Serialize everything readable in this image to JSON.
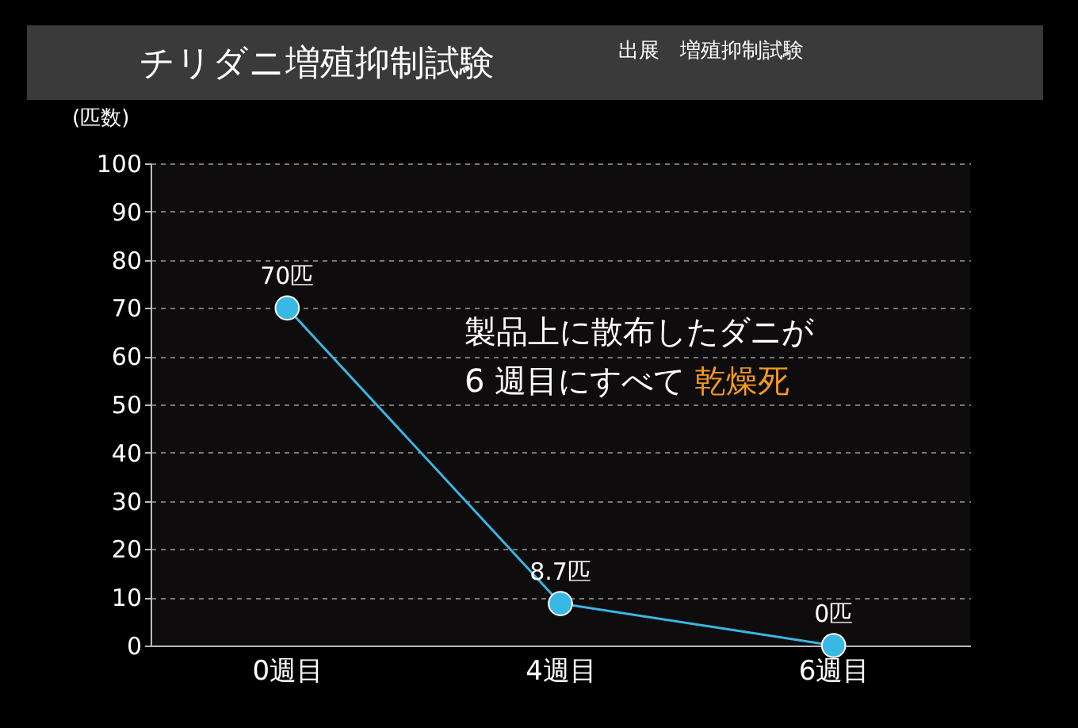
{
  "chart_data": {
    "type": "line",
    "title": "チリダニ増殖抑制試験",
    "ylabel": "(匹数)",
    "categories": [
      "0週目",
      "4週目",
      "6週目"
    ],
    "values": [
      70,
      8.7,
      0
    ],
    "value_labels": [
      "70匹",
      "8.7匹",
      "0匹"
    ],
    "color": "#38b8e4",
    "ylim": [
      0,
      100
    ],
    "yticks": [
      0,
      10,
      20,
      30,
      40,
      50,
      60,
      70,
      80,
      90,
      100
    ],
    "grid": "y",
    "marker": "circle",
    "annotations": [
      "製品上に散布したダニが",
      "6 週目にすべて",
      "乾燥死",
      "出展　増殖抑制試験"
    ]
  }
}
